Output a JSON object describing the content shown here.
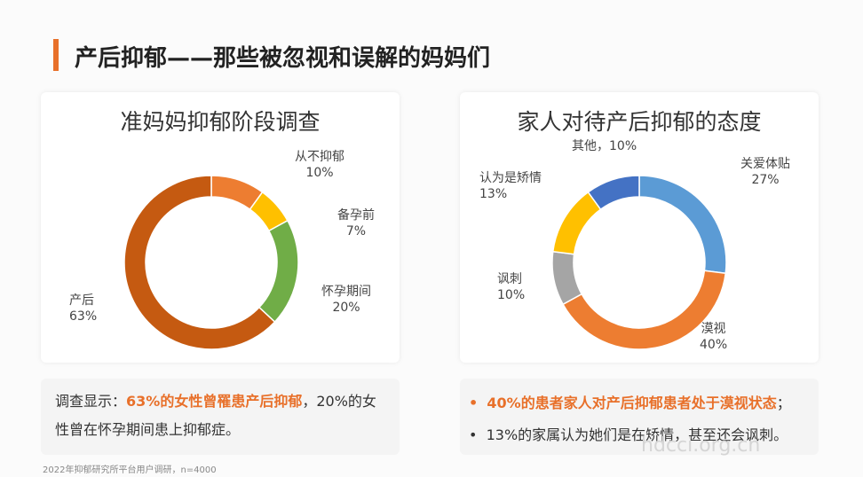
{
  "header": {
    "title": "产后抑郁——那些被忽视和误解的妈妈们"
  },
  "colors": {
    "accent": "#e8702a"
  },
  "chart_data": [
    {
      "type": "pie",
      "title": "准妈妈抑郁阶段调查",
      "categories": [
        "从不抑郁",
        "备孕前",
        "怀孕期间",
        "产后"
      ],
      "values": [
        10,
        7,
        20,
        63
      ],
      "value_labels": [
        "10%",
        "7%",
        "20%",
        "63%"
      ],
      "colors": [
        "#ed7d31",
        "#ffc000",
        "#70ad47",
        "#c55a11"
      ]
    },
    {
      "type": "pie",
      "title": "家人对待产后抑郁的态度",
      "categories": [
        "关爱体贴",
        "漠视",
        "讽刺",
        "认为是矫情",
        "其他"
      ],
      "values": [
        27,
        40,
        10,
        13,
        10
      ],
      "value_labels": [
        "27%",
        "40%",
        "10%",
        "13%",
        "10%"
      ],
      "colors": [
        "#5b9bd5",
        "#ed7d31",
        "#a5a5a5",
        "#ffc000",
        "#4472c4"
      ]
    }
  ],
  "left_note": {
    "prefix": "调查显示：",
    "highlight": "63%的女性曾罹患产后抑郁",
    "suffix": "，20%的女",
    "line2": "性曾在怀孕期间患上抑郁症。"
  },
  "right_note": {
    "bullet1_dot": "•",
    "bullet1_hl": "40%的患者家人对产后抑郁患者处于漠视状态",
    "bullet1_tail": "；",
    "bullet2_dot": "•",
    "bullet2": "13%的家属认为她们是在矫情，甚至还会讽刺。"
  },
  "source": "2022年抑郁研究所平台用户调研，n=4000",
  "watermark": "hdcci.org.cn"
}
